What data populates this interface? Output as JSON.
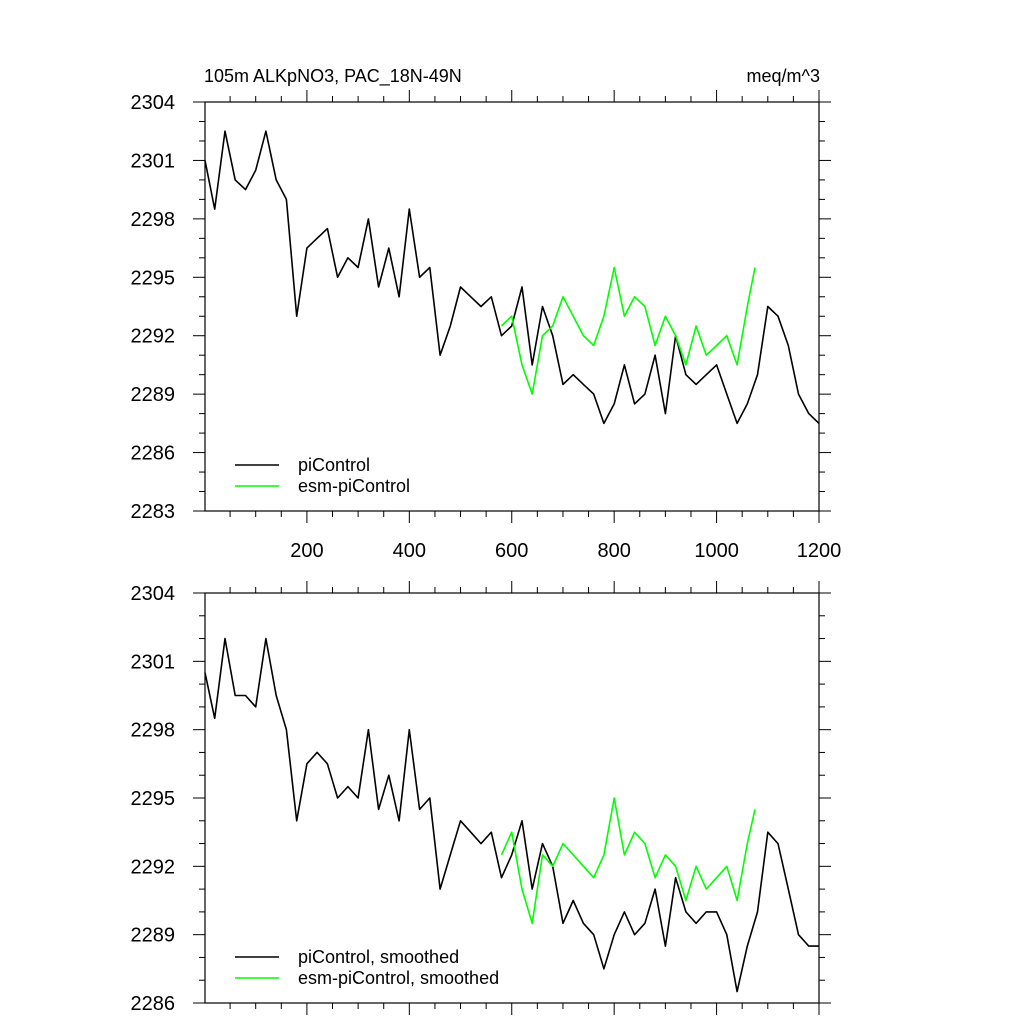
{
  "figure": {
    "title_left": "105m ALKpNO3, PAC_18N-49N",
    "title_right": "meq/m^3"
  },
  "chart_data": [
    {
      "type": "line",
      "xlim": [
        1,
        1200
      ],
      "ylim": [
        2283,
        2304
      ],
      "x_ticks": [
        200,
        400,
        600,
        800,
        1000,
        1200
      ],
      "x_tick_labels": [
        "200",
        "400",
        "600",
        "800",
        "1000",
        "1200"
      ],
      "y_ticks": [
        2283,
        2286,
        2289,
        2292,
        2295,
        2298,
        2301,
        2304
      ],
      "y_tick_labels": [
        "2283",
        "2286",
        "2289",
        "2292",
        "2295",
        "2298",
        "2301",
        "2304"
      ],
      "grid": false,
      "legend_position": "bottom-left",
      "series": [
        {
          "name": "piControl",
          "color": "#000000",
          "x": [
            1,
            20,
            40,
            60,
            80,
            100,
            120,
            140,
            160,
            180,
            200,
            220,
            240,
            260,
            280,
            300,
            320,
            340,
            360,
            380,
            400,
            420,
            440,
            460,
            480,
            500,
            520,
            540,
            560,
            580,
            600,
            620,
            640,
            660,
            680,
            700,
            720,
            740,
            760,
            780,
            800,
            820,
            840,
            860,
            880,
            900,
            920,
            940,
            960,
            980,
            1000,
            1020,
            1040,
            1060,
            1080,
            1100,
            1120,
            1140,
            1160,
            1180,
            1200
          ],
          "values": [
            2301.0,
            2298.5,
            2302.5,
            2300.0,
            2299.5,
            2300.5,
            2302.5,
            2300.0,
            2299.0,
            2293.0,
            2296.5,
            2297.0,
            2297.5,
            2295.0,
            2296.0,
            2295.5,
            2298.0,
            2294.5,
            2296.5,
            2294.0,
            2298.5,
            2295.0,
            2295.5,
            2291.0,
            2292.5,
            2294.5,
            2294.0,
            2293.5,
            2294.0,
            2292.0,
            2292.5,
            2294.5,
            2290.5,
            2293.5,
            2292.0,
            2289.5,
            2290.0,
            2289.5,
            2289.0,
            2287.5,
            2288.5,
            2290.5,
            2288.5,
            2289.0,
            2291.0,
            2288.0,
            2292.0,
            2290.0,
            2289.5,
            2290.0,
            2290.5,
            2289.0,
            2287.5,
            2288.5,
            2290.0,
            2293.5,
            2293.0,
            2291.5,
            2289.0,
            2288.0,
            2287.5
          ]
        },
        {
          "name": "esm-piControl",
          "color": "#00ff00",
          "x": [
            580,
            600,
            620,
            640,
            660,
            680,
            700,
            720,
            740,
            760,
            780,
            800,
            820,
            840,
            860,
            880,
            900,
            920,
            940,
            960,
            980,
            1000,
            1020,
            1040,
            1060,
            1075
          ],
          "values": [
            2292.5,
            2293.0,
            2290.5,
            2289.0,
            2292.0,
            2292.5,
            2294.0,
            2293.0,
            2292.0,
            2291.5,
            2293.0,
            2295.5,
            2293.0,
            2294.0,
            2293.5,
            2291.5,
            2293.0,
            2292.0,
            2290.5,
            2292.5,
            2291.0,
            2291.5,
            2292.0,
            2290.5,
            2293.5,
            2295.5
          ]
        }
      ]
    },
    {
      "type": "line",
      "xlim": [
        1,
        1200
      ],
      "ylim": [
        2286,
        2304
      ],
      "x_ticks": [
        200,
        400,
        600,
        800,
        1000,
        1200
      ],
      "y_ticks": [
        2286,
        2289,
        2292,
        2295,
        2298,
        2301,
        2304
      ],
      "y_tick_labels": [
        "2286",
        "2289",
        "2292",
        "2295",
        "2298",
        "2301",
        "2304"
      ],
      "grid": false,
      "legend_position": "bottom-left",
      "series": [
        {
          "name": "piControl, smoothed",
          "color": "#000000",
          "x": [
            1,
            20,
            40,
            60,
            80,
            100,
            120,
            140,
            160,
            180,
            200,
            220,
            240,
            260,
            280,
            300,
            320,
            340,
            360,
            380,
            400,
            420,
            440,
            460,
            480,
            500,
            520,
            540,
            560,
            580,
            600,
            620,
            640,
            660,
            680,
            700,
            720,
            740,
            760,
            780,
            800,
            820,
            840,
            860,
            880,
            900,
            920,
            940,
            960,
            980,
            1000,
            1020,
            1040,
            1060,
            1080,
            1100,
            1120,
            1140,
            1160,
            1180,
            1200
          ],
          "values": [
            2300.5,
            2298.5,
            2302.0,
            2299.5,
            2299.5,
            2299.0,
            2302.0,
            2299.5,
            2298.0,
            2294.0,
            2296.5,
            2297.0,
            2296.5,
            2295.0,
            2295.5,
            2295.0,
            2298.0,
            2294.5,
            2296.0,
            2294.0,
            2298.0,
            2294.5,
            2295.0,
            2291.0,
            2292.5,
            2294.0,
            2293.5,
            2293.0,
            2293.5,
            2291.5,
            2292.5,
            2294.0,
            2291.0,
            2293.0,
            2292.0,
            2289.5,
            2290.5,
            2289.5,
            2289.0,
            2287.5,
            2289.0,
            2290.0,
            2289.0,
            2289.5,
            2291.0,
            2288.5,
            2291.5,
            2290.0,
            2289.5,
            2290.0,
            2290.0,
            2289.0,
            2286.5,
            2288.5,
            2290.0,
            2293.5,
            2293.0,
            2291.0,
            2289.0,
            2288.5,
            2288.5
          ]
        },
        {
          "name": "esm-piControl, smoothed",
          "color": "#00ff00",
          "x": [
            580,
            600,
            620,
            640,
            660,
            680,
            700,
            720,
            740,
            760,
            780,
            800,
            820,
            840,
            860,
            880,
            900,
            920,
            940,
            960,
            980,
            1000,
            1020,
            1040,
            1060,
            1075
          ],
          "values": [
            2292.5,
            2293.5,
            2291.0,
            2289.5,
            2292.5,
            2292.0,
            2293.0,
            2292.5,
            2292.0,
            2291.5,
            2292.5,
            2295.0,
            2292.5,
            2293.5,
            2293.0,
            2291.5,
            2292.5,
            2292.0,
            2290.5,
            2292.0,
            2291.0,
            2291.5,
            2292.0,
            2290.5,
            2293.0,
            2294.5
          ]
        }
      ]
    }
  ]
}
